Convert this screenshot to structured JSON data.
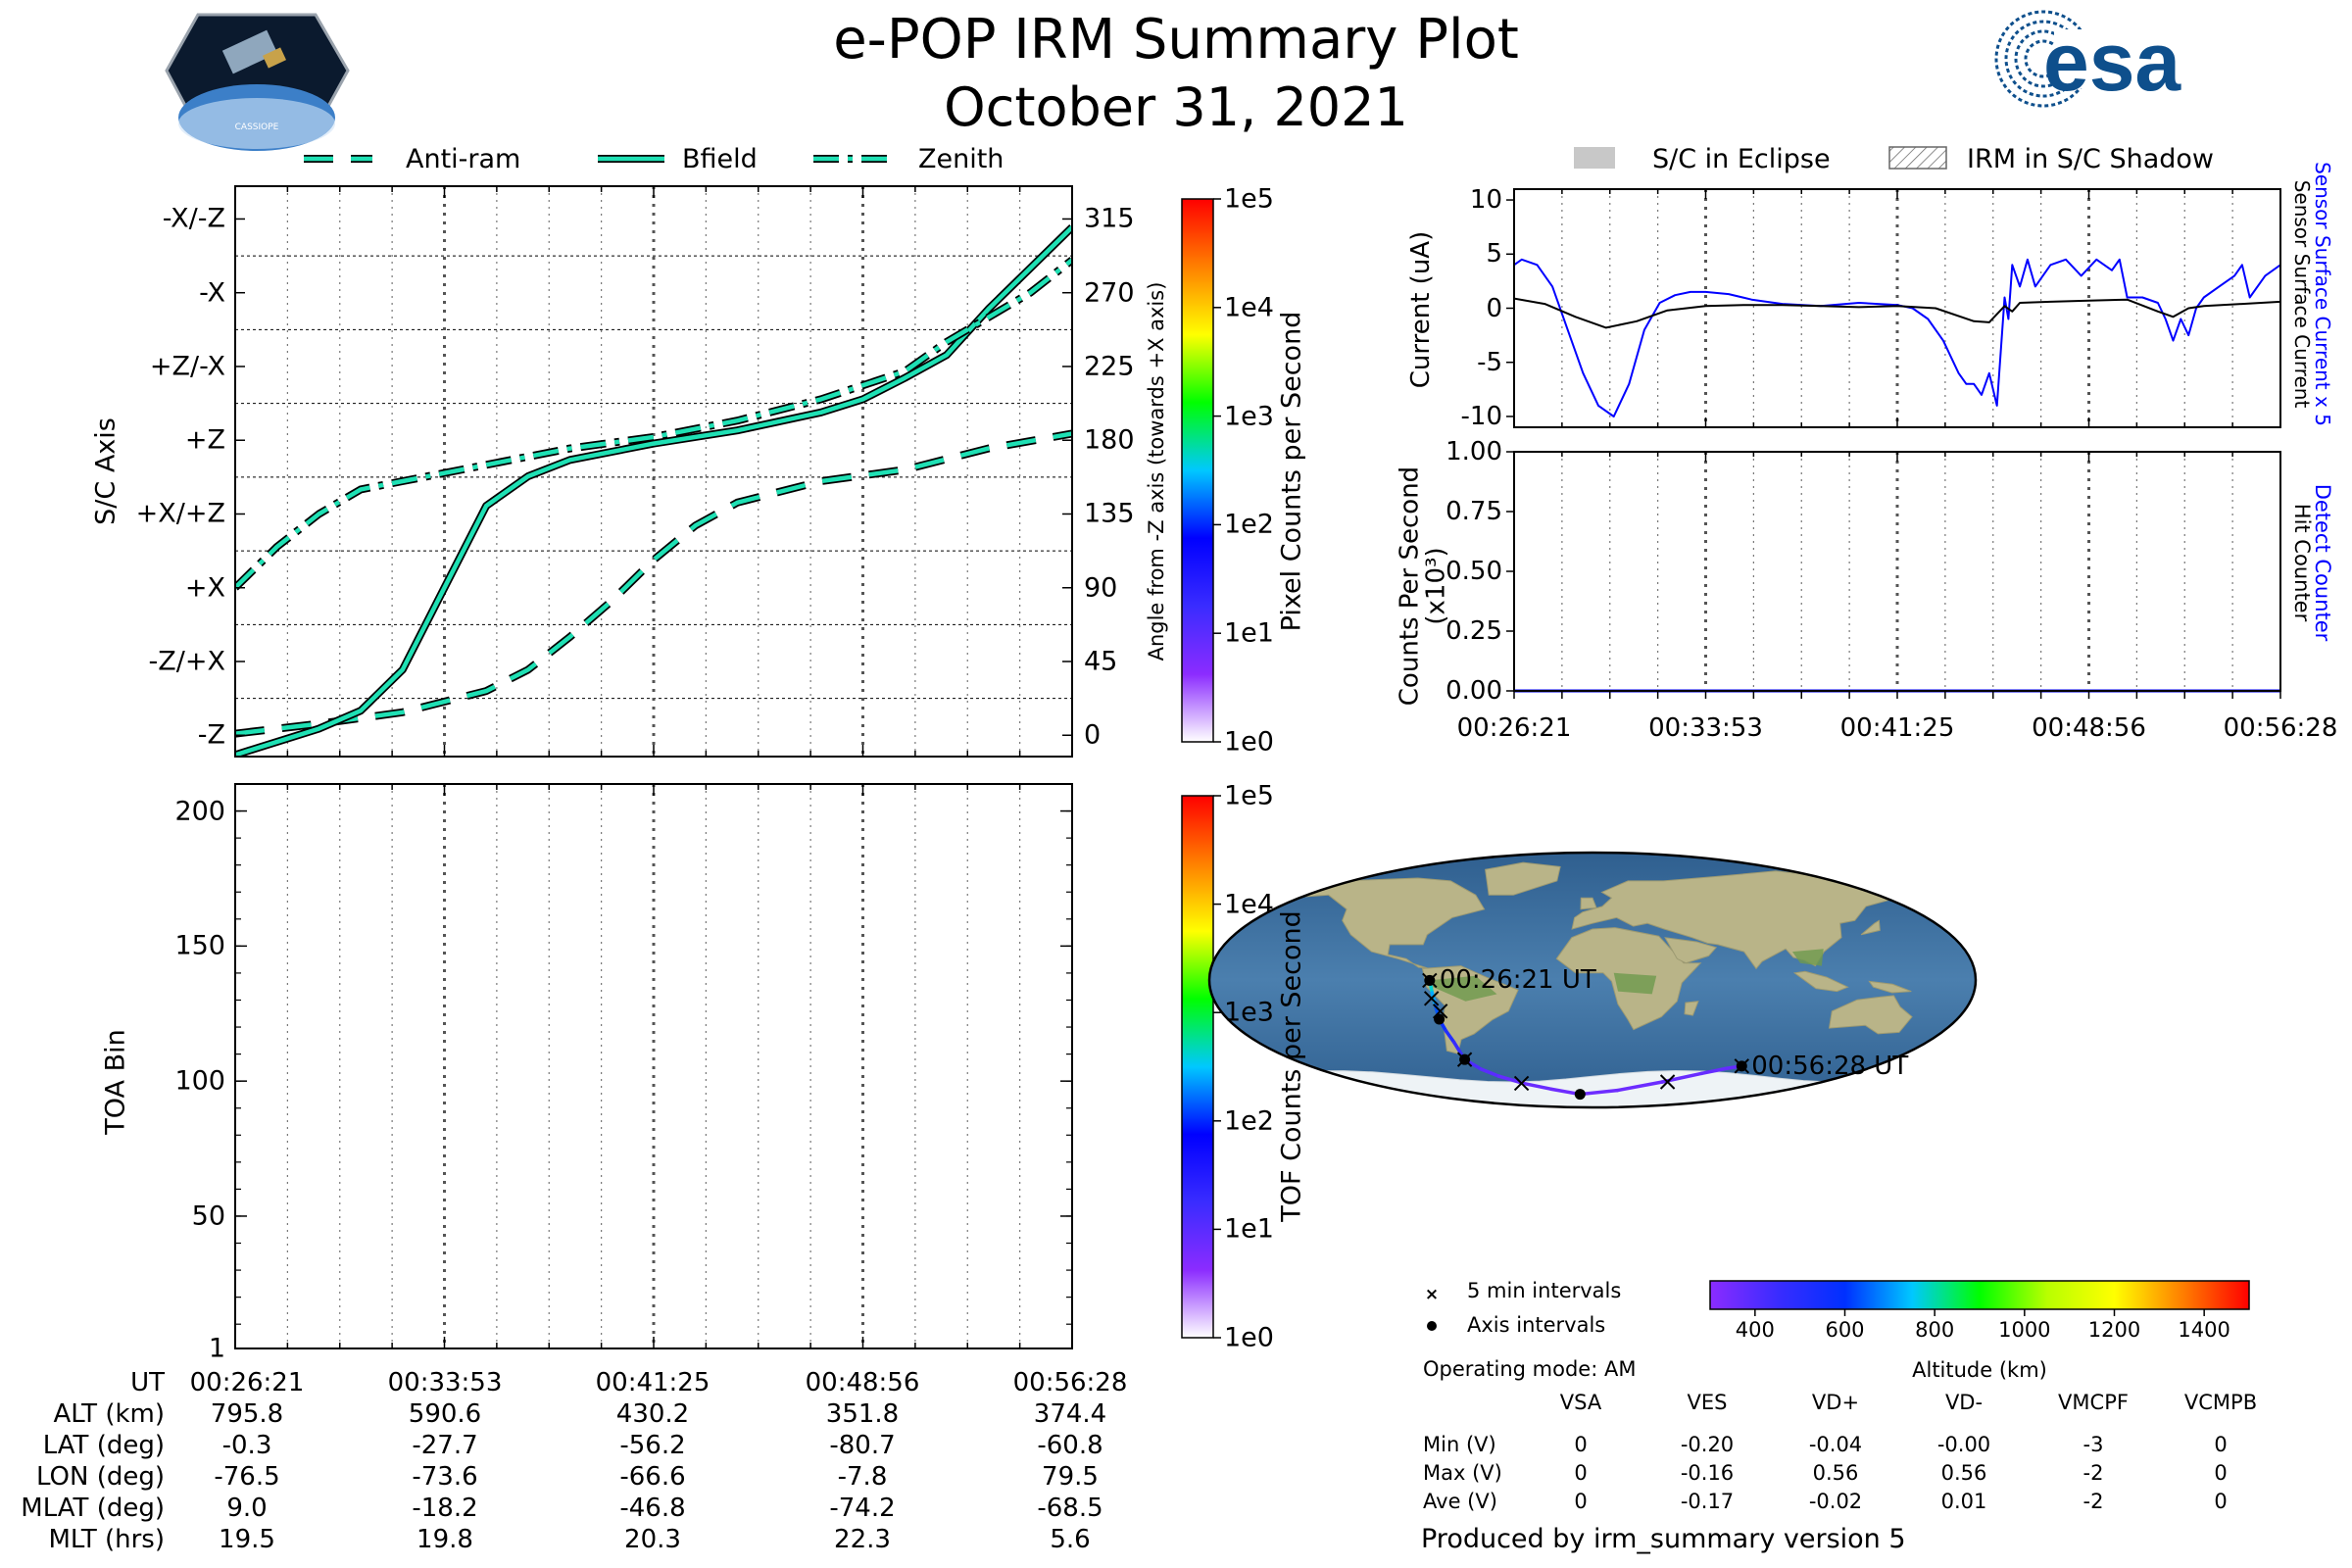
{
  "header": {
    "title": "e-POP IRM Summary Plot",
    "date": "October 31, 2021",
    "left_logo_text": "CASSIOPE",
    "right_logo_text": "esa"
  },
  "colors": {
    "teal": "#1fe0b4",
    "current_blue": "#0000ff",
    "altitude_colormap": [
      "#8b2cff",
      "#3a2cff",
      "#0030ff",
      "#00c8ff",
      "#00ff00",
      "#b8ff00",
      "#ffff00",
      "#ff8000",
      "#ff0000"
    ],
    "counts_colormap": [
      "#ffffff",
      "#8b2cff",
      "#3a2cff",
      "#0000ff",
      "#00c8ff",
      "#00ff00",
      "#ffff00",
      "#ff8000",
      "#ff0000"
    ],
    "eclipse_gray": "#c8c8c8"
  },
  "time_ticks": [
    "00:26:21",
    "00:33:53",
    "00:41:25",
    "00:48:56",
    "00:56:28"
  ],
  "chart_data": [
    {
      "id": "sc_axis",
      "type": "line",
      "title": "",
      "ylabel": "S/C Axis",
      "ylabel_right": "Angle from -Z axis (towards +X axis)",
      "y_category_labels": [
        "-Z",
        "-Z/+X",
        "+X",
        "+X/+Z",
        "+Z",
        "+Z/-X",
        "-X",
        "-X/-Z"
      ],
      "right_ticks": [
        0,
        45,
        90,
        135,
        180,
        225,
        270,
        315
      ],
      "ylim": [
        -13,
        335
      ],
      "xlim": [
        0,
        1
      ],
      "legend": [
        "Anti-ram",
        "Bfield",
        "Zenith"
      ],
      "legend_placement": "top",
      "grid": "dotted vertical, dashed horizontal",
      "series": [
        {
          "name": "Anti-ram",
          "x": [
            0,
            0.1,
            0.2,
            0.3,
            0.35,
            0.4,
            0.45,
            0.5,
            0.55,
            0.6,
            0.7,
            0.8,
            0.9,
            1.0
          ],
          "values": [
            1,
            7,
            14,
            27,
            40,
            60,
            82,
            107,
            128,
            142,
            155,
            162,
            175,
            184
          ]
        },
        {
          "name": "Bfield",
          "x": [
            0,
            0.1,
            0.15,
            0.2,
            0.25,
            0.3,
            0.35,
            0.4,
            0.5,
            0.6,
            0.7,
            0.75,
            0.8,
            0.85,
            0.9,
            0.95,
            1.0
          ],
          "values": [
            -12,
            4,
            15,
            40,
            90,
            140,
            158,
            168,
            178,
            186,
            197,
            205,
            218,
            232,
            260,
            285,
            310
          ]
        },
        {
          "name": "Zenith",
          "x": [
            0,
            0.05,
            0.1,
            0.15,
            0.2,
            0.25,
            0.3,
            0.4,
            0.5,
            0.6,
            0.7,
            0.8,
            0.85,
            0.9,
            0.95,
            1.0
          ],
          "values": [
            90,
            115,
            135,
            150,
            155,
            160,
            165,
            175,
            182,
            192,
            205,
            222,
            240,
            255,
            270,
            290
          ]
        }
      ]
    },
    {
      "id": "toa",
      "type": "heatmap",
      "title": "",
      "ylabel": "TOA Bin",
      "y_ticks": [
        1,
        50,
        100,
        150,
        200
      ],
      "ylim": [
        1,
        210
      ],
      "values": []
    },
    {
      "id": "pixel_colorbar",
      "type": "colorbar",
      "label": "Pixel Counts per Second",
      "ticks": [
        "1e0",
        "1e1",
        "1e2",
        "1e3",
        "1e4",
        "1e5"
      ]
    },
    {
      "id": "tof_colorbar",
      "type": "colorbar",
      "label": "TOF Counts per Second",
      "ticks": [
        "1e0",
        "1e1",
        "1e2",
        "1e3",
        "1e4",
        "1e5"
      ]
    },
    {
      "id": "current",
      "type": "line",
      "title": "",
      "ylabel": "Current (uA)",
      "y_ticks": [
        10,
        5,
        0,
        -5,
        -10
      ],
      "ylim": [
        -11,
        11
      ],
      "legend": [
        "S/C in Eclipse",
        "IRM in S/C Shadow"
      ],
      "right_labels": [
        "Sensor Surface Current x 5",
        "Sensor Surface Current"
      ],
      "series": [
        {
          "name": "Sensor Surface Current x 5",
          "x": [
            0,
            0.01,
            0.03,
            0.05,
            0.07,
            0.09,
            0.11,
            0.13,
            0.15,
            0.17,
            0.19,
            0.21,
            0.23,
            0.25,
            0.28,
            0.31,
            0.35,
            0.4,
            0.45,
            0.5,
            0.52,
            0.54,
            0.56,
            0.58,
            0.59,
            0.6,
            0.61,
            0.62,
            0.63,
            0.64,
            0.645,
            0.65,
            0.66,
            0.67,
            0.68,
            0.7,
            0.72,
            0.74,
            0.76,
            0.78,
            0.79,
            0.8,
            0.82,
            0.84,
            0.85,
            0.86,
            0.87,
            0.88,
            0.89,
            0.9,
            0.92,
            0.94,
            0.95,
            0.96,
            0.98,
            1.0
          ],
          "values": [
            4,
            4.5,
            4,
            2,
            -2,
            -6,
            -9,
            -10,
            -7,
            -2,
            0.5,
            1.2,
            1.5,
            1.5,
            1.3,
            0.8,
            0.4,
            0.2,
            0.5,
            0.3,
            0,
            -1,
            -3,
            -6,
            -7,
            -7,
            -8,
            -6,
            -9,
            1,
            -1,
            4,
            2,
            4.5,
            2,
            4,
            4.5,
            3,
            4.5,
            3.5,
            4.5,
            1,
            1,
            0.5,
            -1,
            -3,
            -1,
            -2.5,
            0,
            1,
            2,
            3,
            4,
            1,
            3,
            4
          ]
        },
        {
          "name": "Sensor Surface Current",
          "x": [
            0,
            0.04,
            0.08,
            0.12,
            0.16,
            0.2,
            0.25,
            0.3,
            0.35,
            0.4,
            0.45,
            0.5,
            0.55,
            0.6,
            0.62,
            0.64,
            0.65,
            0.66,
            0.7,
            0.75,
            0.8,
            0.84,
            0.86,
            0.88,
            0.9,
            0.95,
            1.0
          ],
          "values": [
            0.9,
            0.4,
            -0.8,
            -1.8,
            -1.2,
            -0.2,
            0.2,
            0.3,
            0.3,
            0.2,
            0.1,
            0.2,
            0,
            -1.2,
            -1.3,
            0.2,
            -0.3,
            0.5,
            0.6,
            0.7,
            0.8,
            -0.3,
            -0.8,
            0,
            0.2,
            0.4,
            0.6
          ]
        }
      ]
    },
    {
      "id": "counts",
      "type": "line",
      "title": "",
      "ylabel": "Counts Per Second (x10³)",
      "y_ticks": [
        "1.00",
        "0.75",
        "0.50",
        "0.25",
        "0.00"
      ],
      "ylim": [
        0,
        1
      ],
      "right_labels": [
        "Detect Counter",
        "Hit Counter"
      ],
      "series": [
        {
          "name": "Detect Counter",
          "x": [
            0,
            1
          ],
          "values": [
            0,
            0
          ]
        },
        {
          "name": "Hit Counter",
          "x": [
            0,
            1
          ],
          "values": [
            0,
            0
          ]
        }
      ]
    },
    {
      "id": "ground_track",
      "type": "scatter",
      "title": "",
      "start_label": "00:26:21 UT",
      "end_label": "00:56:28 UT",
      "track_lon": [
        -76.5,
        -75.5,
        -74.5,
        -73.6,
        -71.5,
        -69,
        -66.6,
        -60,
        -52,
        -40,
        -25,
        -7.8,
        15,
        40,
        60,
        72,
        79.5
      ],
      "track_lat": [
        -0.3,
        -9,
        -18,
        -27.7,
        -36,
        -44,
        -56.2,
        -63,
        -68,
        -73,
        -77,
        -80.7,
        -78,
        -72,
        -66,
        -62.5,
        -60.8
      ],
      "track_alt_km": [
        795.8,
        760,
        680,
        590.6,
        540,
        480,
        430.2,
        400,
        380,
        365,
        357,
        351.8,
        354,
        360,
        366,
        371,
        374.4
      ],
      "five_min_marks": [
        [
          -76.5,
          -0.3
        ],
        [
          -76,
          -13
        ],
        [
          -72.5,
          -22
        ],
        [
          -66.6,
          -56.2
        ],
        [
          -41,
          -73
        ],
        [
          43,
          -72
        ],
        [
          79.5,
          -60.8
        ]
      ],
      "axis_interval_marks": [
        [
          -76.5,
          -0.3
        ],
        [
          -73.6,
          -27.7
        ],
        [
          -66.6,
          -56.2
        ],
        [
          -7.8,
          -80.7
        ],
        [
          79.5,
          -60.8
        ]
      ],
      "legend": [
        "5 min intervals",
        "Axis intervals"
      ],
      "colorbar_label": "Altitude (km)",
      "colorbar_ticks": [
        400,
        600,
        800,
        1000,
        1200,
        1400
      ],
      "colorbar_range": [
        300,
        1500
      ]
    }
  ],
  "ephemeris": {
    "row_labels": [
      "UT",
      "ALT (km)",
      "LAT (deg)",
      "LON (deg)",
      "MLAT (deg)",
      "MLT (hrs)"
    ],
    "columns": [
      [
        "00:26:21",
        "795.8",
        "-0.3",
        "-76.5",
        "9.0",
        "19.5"
      ],
      [
        "00:33:53",
        "590.6",
        "-27.7",
        "-73.6",
        "-18.2",
        "19.8"
      ],
      [
        "00:41:25",
        "430.2",
        "-56.2",
        "-66.6",
        "-46.8",
        "20.3"
      ],
      [
        "00:48:56",
        "351.8",
        "-80.7",
        "-7.8",
        "-74.2",
        "22.3"
      ],
      [
        "00:56:28",
        "374.4",
        "-60.8",
        "79.5",
        "-68.5",
        "5.6"
      ]
    ]
  },
  "voltages": {
    "operating_mode": "Operating mode: AM",
    "headers": [
      "VSA",
      "VES",
      "VD+",
      "VD-",
      "VMCPF",
      "VCMPB"
    ],
    "rows": [
      {
        "label": "Min (V)",
        "values": [
          "0",
          "-0.20",
          "-0.04",
          "-0.00",
          "-3",
          "0"
        ]
      },
      {
        "label": "Max (V)",
        "values": [
          "0",
          "-0.16",
          "0.56",
          "0.56",
          "-2",
          "0"
        ]
      },
      {
        "label": "Ave (V)",
        "values": [
          "0",
          "-0.17",
          "-0.02",
          "0.01",
          "-2",
          "0"
        ]
      }
    ]
  },
  "footer": "Produced by irm_summary version 5"
}
